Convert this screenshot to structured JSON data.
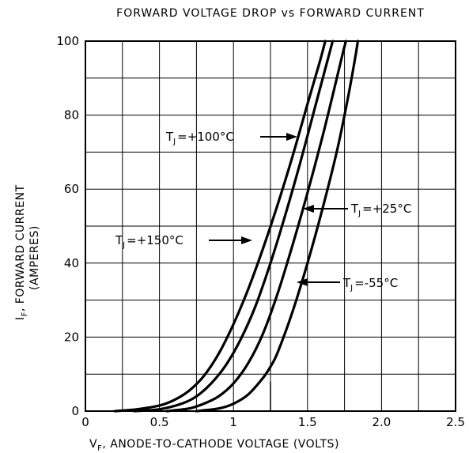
{
  "chart_data": {
    "type": "line",
    "title": "FORWARD VOLTAGE DROP vs FORWARD CURRENT",
    "xlabel": {
      "main": "V",
      "sub": "F",
      "rest": ", ANODE-TO-CATHODE VOLTAGE (VOLTS)"
    },
    "ylabel": {
      "main": "I",
      "sub": "F",
      "rest": ", FORWARD CURRENT",
      "line2": "(AMPERES)"
    },
    "xlim": [
      0,
      2.5
    ],
    "ylim": [
      0,
      100
    ],
    "x_ticks": [
      0,
      0.5,
      1,
      1.5,
      2,
      2.5
    ],
    "x_tick_labels": [
      "0",
      "0.5",
      "1",
      "1.5",
      "2.0",
      "2.5"
    ],
    "y_ticks": [
      0,
      20,
      40,
      60,
      80,
      100
    ],
    "y_tick_labels": [
      "0",
      "20",
      "40",
      "60",
      "80",
      "100"
    ],
    "grid": true,
    "x_minor_step": 0.25,
    "y_minor_step": 10,
    "series": [
      {
        "name": "TJ=+150°C",
        "points": [
          [
            0.2,
            0
          ],
          [
            0.35,
            0.5
          ],
          [
            0.5,
            1.5
          ],
          [
            0.6,
            3
          ],
          [
            0.7,
            5.5
          ],
          [
            0.8,
            9.5
          ],
          [
            0.9,
            15.5
          ],
          [
            1.0,
            23.5
          ],
          [
            1.1,
            33
          ],
          [
            1.2,
            44
          ],
          [
            1.3,
            56
          ],
          [
            1.4,
            69
          ],
          [
            1.5,
            83
          ],
          [
            1.58,
            94
          ],
          [
            1.62,
            100
          ]
        ]
      },
      {
        "name": "TJ=+100°C",
        "points": [
          [
            0.33,
            0
          ],
          [
            0.5,
            0.5
          ],
          [
            0.65,
            2
          ],
          [
            0.75,
            4
          ],
          [
            0.85,
            7.5
          ],
          [
            0.95,
            12.5
          ],
          [
            1.05,
            19.5
          ],
          [
            1.15,
            28.5
          ],
          [
            1.25,
            40
          ],
          [
            1.35,
            53
          ],
          [
            1.45,
            67
          ],
          [
            1.55,
            82
          ],
          [
            1.63,
            94
          ],
          [
            1.67,
            100
          ]
        ]
      },
      {
        "name": "TJ=+25°C",
        "points": [
          [
            0.55,
            0
          ],
          [
            0.7,
            0.7
          ],
          [
            0.8,
            2
          ],
          [
            0.9,
            4
          ],
          [
            1.0,
            7.5
          ],
          [
            1.1,
            13
          ],
          [
            1.2,
            21
          ],
          [
            1.3,
            32
          ],
          [
            1.4,
            45
          ],
          [
            1.5,
            59
          ],
          [
            1.6,
            74
          ],
          [
            1.68,
            87
          ],
          [
            1.74,
            97
          ],
          [
            1.76,
            100
          ]
        ]
      },
      {
        "name": "TJ=-55°C",
        "points": [
          [
            0.75,
            0
          ],
          [
            0.9,
            0.7
          ],
          [
            1.0,
            2
          ],
          [
            1.1,
            4.5
          ],
          [
            1.2,
            9
          ],
          [
            1.25,
            12
          ],
          [
            1.3,
            16
          ],
          [
            1.4,
            27
          ],
          [
            1.5,
            40
          ],
          [
            1.6,
            54.5
          ],
          [
            1.7,
            70.5
          ],
          [
            1.77,
            84
          ],
          [
            1.82,
            95
          ],
          [
            1.84,
            100
          ]
        ]
      }
    ],
    "curve_labels": [
      {
        "prefix": "T",
        "sub": "J",
        "value": "=+100°C",
        "series": "TJ=+100°C"
      },
      {
        "prefix": "T",
        "sub": "J",
        "value": "=+25°C",
        "series": "TJ=+25°C"
      },
      {
        "prefix": "T",
        "sub": "J",
        "value": "=+150°C",
        "series": "TJ=+150°C"
      },
      {
        "prefix": "T",
        "sub": "J",
        "value": "=-55°C",
        "series": "TJ=-55°C"
      }
    ]
  },
  "colors": {
    "line": "#000000",
    "grid": "#000000",
    "background": "#ffffff"
  }
}
